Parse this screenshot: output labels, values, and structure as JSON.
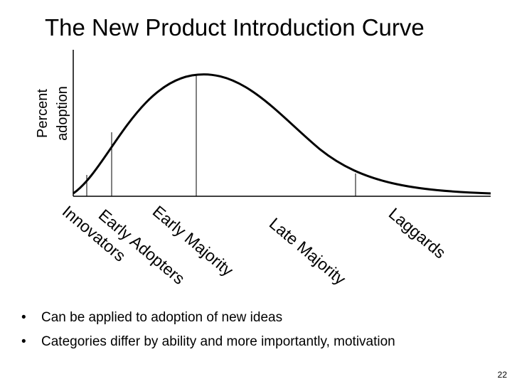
{
  "slide": {
    "title": "The New Product Introduction Curve",
    "y_axis_label": [
      "Percent",
      "adoption"
    ],
    "page_number": "22"
  },
  "categories": [
    {
      "id": "innovators",
      "label": "Innovators"
    },
    {
      "id": "early-adopters",
      "label": "Early Adopters"
    },
    {
      "id": "early-majority",
      "label": "Early Majority"
    },
    {
      "id": "late-majority",
      "label": "Late Majority"
    },
    {
      "id": "laggards",
      "label": "Laggards"
    }
  ],
  "bullets": [
    {
      "marker": "•",
      "text": "Can be applied to adoption of new ideas"
    },
    {
      "marker": "•",
      "text": "Categories differ by ability and more importantly, motivation"
    }
  ]
}
